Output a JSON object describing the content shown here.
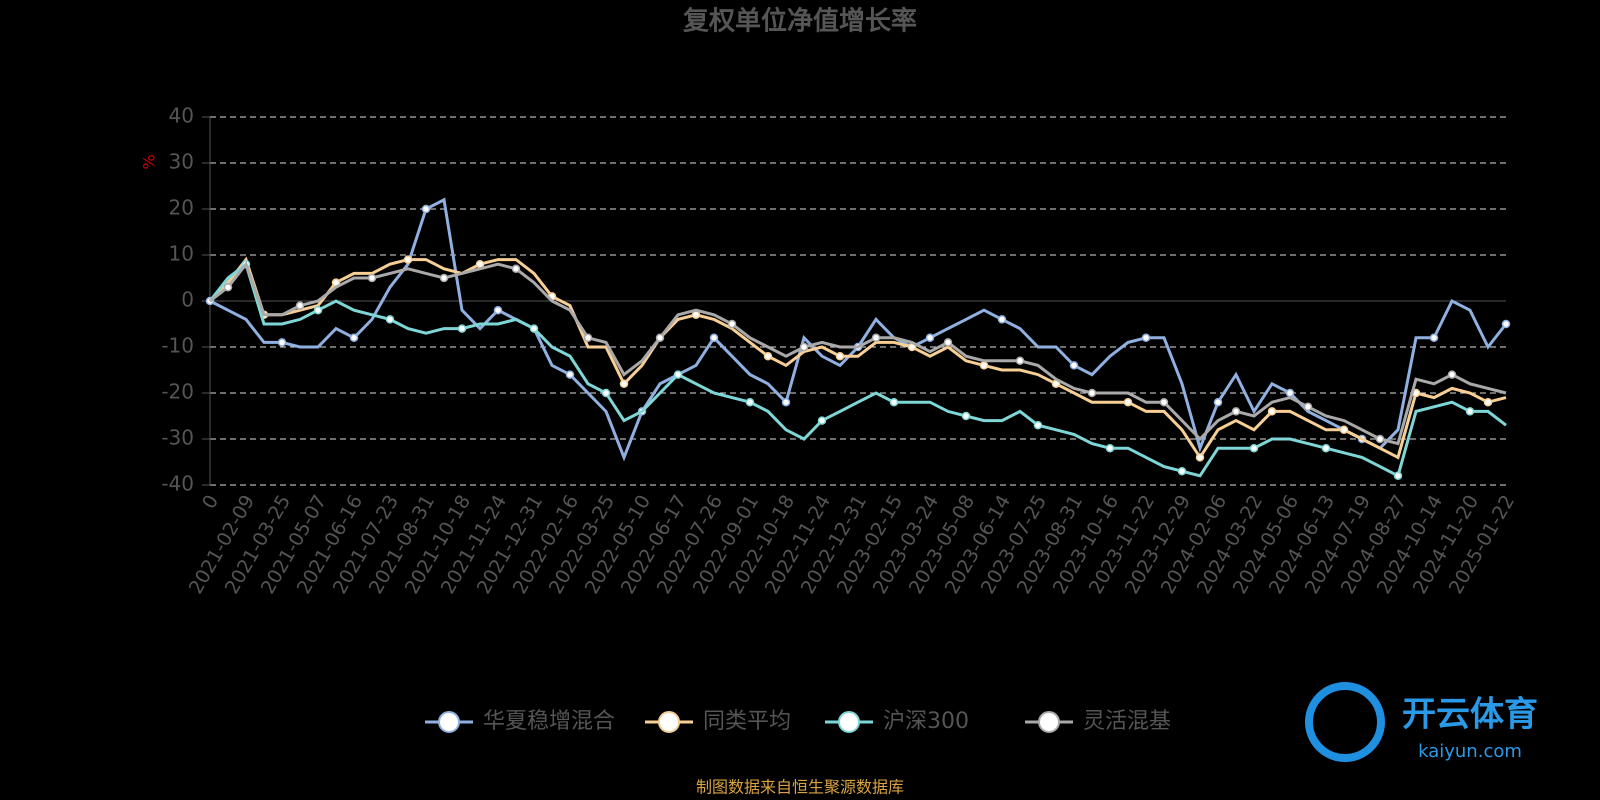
{
  "chart_data": {
    "type": "line",
    "title": "复权单位净值增长率",
    "y_label": "%",
    "categories": [
      "0",
      null,
      "2021-02-09",
      null,
      "2021-03-25",
      null,
      "2021-05-07",
      null,
      "2021-06-16",
      null,
      "2021-07-23",
      null,
      "2021-08-31",
      null,
      "2021-10-18",
      null,
      "2021-11-24",
      null,
      "2021-12-31",
      null,
      "2022-02-16",
      null,
      "2022-03-25",
      null,
      "2022-05-10",
      null,
      "2022-06-17",
      null,
      "2022-07-26",
      null,
      "2022-09-01",
      null,
      "2022-10-18",
      null,
      "2022-11-24",
      null,
      "2022-12-31",
      null,
      "2023-02-15",
      null,
      "2023-03-24",
      null,
      "2023-05-08",
      null,
      "2023-06-14",
      null,
      "2023-07-25",
      null,
      "2023-08-31",
      null,
      "2023-10-16",
      null,
      "2023-11-22",
      null,
      "2023-12-29",
      null,
      "2024-02-06",
      null,
      "2024-03-22",
      null,
      "2024-05-06",
      null,
      "2024-06-13",
      null,
      "2024-07-19",
      null,
      "2024-08-27",
      null,
      "2024-10-14",
      null,
      "2024-11-20",
      null,
      "2025-01-22"
    ],
    "series": [
      {
        "name": "华夏稳增混合",
        "color": "#8fb0e0",
        "values": [
          0,
          -2,
          -4,
          -9,
          -9,
          -10,
          -10,
          -6,
          -8,
          -4,
          3,
          8,
          20,
          22,
          -2,
          -6,
          -2,
          -4,
          -6,
          -14,
          -16,
          -20,
          -24,
          -34,
          -24,
          -18,
          -16,
          -14,
          -8,
          -12,
          -16,
          -18,
          -22,
          -8,
          -12,
          -14,
          -10,
          -4,
          -8,
          -10,
          -8,
          -6,
          -4,
          -2,
          -4,
          -6,
          -10,
          -10,
          -14,
          -16,
          -12,
          -9,
          -8,
          -8,
          -18,
          -32,
          -22,
          -16,
          -24,
          -18,
          -20,
          -24,
          -26,
          -28,
          -30,
          -32,
          -28,
          -8,
          -8,
          0,
          -2,
          -10,
          -5
        ]
      },
      {
        "name": "同类平均",
        "color": "#f7cf94",
        "values": [
          0,
          4,
          9,
          -3,
          -3,
          -2,
          -1,
          4,
          6,
          6,
          8,
          9,
          9,
          7,
          6,
          8,
          9,
          9,
          6,
          1,
          -1,
          -10,
          -10,
          -18,
          -14,
          -8,
          -4,
          -3,
          -4,
          -6,
          -9,
          -12,
          -14,
          -11,
          -10,
          -12,
          -12,
          -9,
          -9,
          -10,
          -12,
          -10,
          -13,
          -14,
          -15,
          -15,
          -16,
          -18,
          -20,
          -22,
          -22,
          -22,
          -24,
          -24,
          -28,
          -34,
          -28,
          -26,
          -28,
          -24,
          -24,
          -26,
          -28,
          -28,
          -30,
          -32,
          -34,
          -20,
          -21,
          -19,
          -20,
          -22,
          -21
        ]
      },
      {
        "name": "沪深300",
        "color": "#7fd6d6",
        "values": [
          0,
          5,
          8,
          -5,
          -5,
          -4,
          -2,
          0,
          -2,
          -3,
          -4,
          -6,
          -7,
          -6,
          -6,
          -5,
          -5,
          -4,
          -6,
          -10,
          -12,
          -18,
          -20,
          -26,
          -24,
          -20,
          -16,
          -18,
          -20,
          -21,
          -22,
          -24,
          -28,
          -30,
          -26,
          -24,
          -22,
          -20,
          -22,
          -22,
          -22,
          -24,
          -25,
          -26,
          -26,
          -24,
          -27,
          -28,
          -29,
          -31,
          -32,
          -32,
          -34,
          -36,
          -37,
          -38,
          -32,
          -32,
          -32,
          -30,
          -30,
          -31,
          -32,
          -33,
          -34,
          -36,
          -38,
          -24,
          -23,
          -22,
          -24,
          -24,
          -27
        ]
      },
      {
        "name": "灵活混基",
        "color": "#a9a9a9",
        "values": [
          0,
          3,
          8,
          -3,
          -3,
          -1,
          0,
          3,
          5,
          5,
          6,
          7,
          6,
          5,
          6,
          7,
          8,
          7,
          4,
          0,
          -2,
          -8,
          -9,
          -16,
          -13,
          -8,
          -3,
          -2,
          -3,
          -5,
          -8,
          -10,
          -12,
          -10,
          -9,
          -10,
          -10,
          -8,
          -8,
          -9,
          -11,
          -9,
          -12,
          -13,
          -13,
          -13,
          -14,
          -17,
          -19,
          -20,
          -20,
          -20,
          -22,
          -22,
          -26,
          -30,
          -26,
          -24,
          -25,
          -22,
          -21,
          -23,
          -25,
          -26,
          -28,
          -30,
          -31,
          -17,
          -18,
          -16,
          -18,
          -19,
          -20
        ]
      }
    ],
    "ylim": [
      -40,
      40
    ],
    "yticks": [
      -40,
      -30,
      -20,
      -10,
      0,
      10,
      20,
      30,
      40
    ],
    "grid": true,
    "legend": "bottom",
    "source": "制图数据来自恒生聚源数据库",
    "watermark": {
      "name": "开云体育",
      "url": "kaiyun.com"
    }
  }
}
